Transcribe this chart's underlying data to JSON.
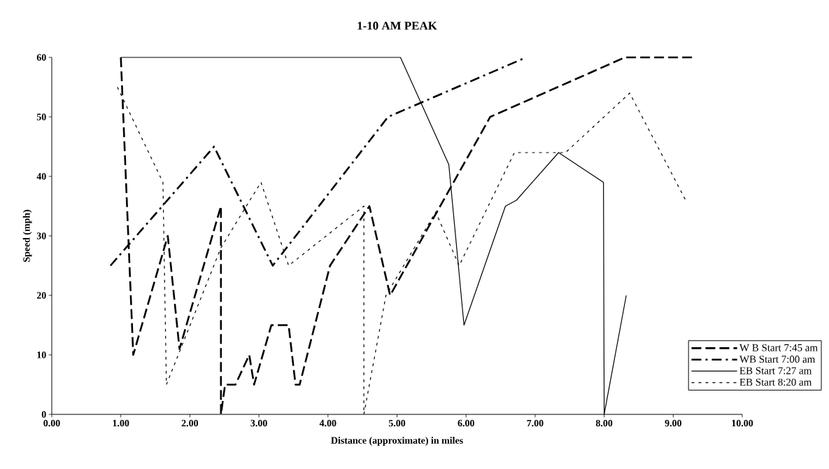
{
  "chart_data": {
    "type": "line",
    "title": "1-10 AM PEAK",
    "xlabel": "Distance (approximate) in miles",
    "ylabel": "Speed (mph)",
    "xlim": [
      0,
      10
    ],
    "ylim": [
      0,
      60
    ],
    "xticks": [
      {
        "value": 0,
        "label": "0.00"
      },
      {
        "value": 1,
        "label": "1.00"
      },
      {
        "value": 2,
        "label": "2.00"
      },
      {
        "value": 3,
        "label": "3.00"
      },
      {
        "value": 4,
        "label": "4.00"
      },
      {
        "value": 5,
        "label": "5.00"
      },
      {
        "value": 6,
        "label": "6.00"
      },
      {
        "value": 7,
        "label": "7.00"
      },
      {
        "value": 8,
        "label": "8.00"
      },
      {
        "value": 9,
        "label": "9.00"
      },
      {
        "value": 10,
        "label": "10.00"
      }
    ],
    "yticks": [
      0,
      10,
      20,
      30,
      40,
      50,
      60
    ],
    "legend": "bottom right",
    "series": [
      {
        "name": "W B Start 7:45 am",
        "color": "#000000",
        "line_style": "dashed",
        "x": [
          1.0,
          1.18,
          1.68,
          1.85,
          2.45,
          2.45,
          2.51,
          2.66,
          2.86,
          2.93,
          3.18,
          3.43,
          3.53,
          3.59,
          4.03,
          4.6,
          4.9,
          6.35,
          8.3,
          9.31
        ],
        "values": [
          60,
          10,
          30,
          11,
          35,
          0,
          5,
          5,
          10,
          5,
          15,
          15,
          5,
          5,
          25,
          35,
          20,
          50,
          60,
          60
        ]
      },
      {
        "name": "WB Start 7:00 am",
        "color": "#000000",
        "line_style": "dashdot",
        "x": [
          0.85,
          2.35,
          3.2,
          4.87,
          6.87
        ],
        "values": [
          25,
          45,
          25,
          50,
          60
        ]
      },
      {
        "name": "EB Start 7:27 am",
        "color": "#000000",
        "line_style": "solid",
        "x": [
          1.0,
          5.05,
          5.75,
          5.97,
          6.57,
          6.73,
          7.34,
          7.99,
          8.0,
          8.32
        ],
        "values": [
          60,
          60,
          42,
          15,
          35,
          36,
          44,
          39,
          0,
          20
        ]
      },
      {
        "name": "EB Start 8:20 am",
        "color": "#000000",
        "line_style": "dotted",
        "x": [
          0.95,
          1.61,
          1.66,
          2.45,
          2.87,
          3.03,
          3.43,
          4.52,
          4.52,
          4.84,
          5.56,
          5.9,
          6.7,
          7.44,
          8.37,
          9.18
        ],
        "values": [
          55,
          39,
          5,
          28,
          36,
          39,
          25,
          35,
          0,
          20,
          34,
          25,
          44,
          44,
          54,
          36
        ]
      }
    ]
  }
}
